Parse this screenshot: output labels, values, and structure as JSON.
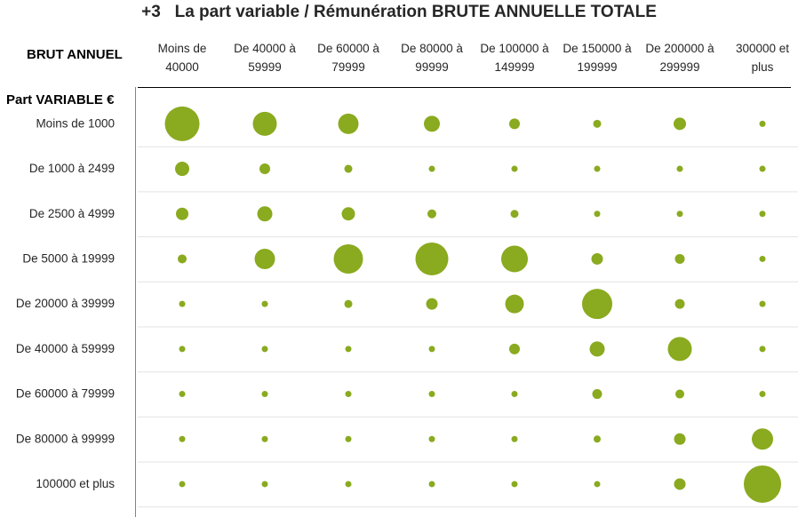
{
  "title": {
    "number": "+3",
    "part1": "La part variable / Rémunération",
    "part2": "BRUTE ANNUELLE TOTALE"
  },
  "corner_label": "BRUT ANNUEL",
  "row_header": "Part VARIABLE €",
  "colors": {
    "bubble": "#8aaa1f",
    "grid": "#e3e3e3",
    "axis": "#7f7f9f",
    "header_rule": "#000000"
  },
  "chart_data": {
    "type": "scatter",
    "subtype": "bubble-matrix",
    "title": "La part variable / Rémunération BRUTE ANNUELLE TOTALE",
    "x_categories": [
      [
        "Moins de",
        "40000"
      ],
      [
        "De 40000 à",
        "59999"
      ],
      [
        "De 60000 à",
        "79999"
      ],
      [
        "De 80000 à",
        "99999"
      ],
      [
        "De 100000 à",
        "149999"
      ],
      [
        "De 150000 à",
        "199999"
      ],
      [
        "De 200000 à",
        "299999"
      ],
      [
        "300000 et",
        "plus"
      ]
    ],
    "y_categories": [
      "Moins de 1000",
      "De 1000 à 2499",
      "De 2500 à 4999",
      "De 5000 à 19999",
      "De 20000 à 39999",
      "De 40000 à 59999",
      "De 60000 à 79999",
      "De 80000 à 99999",
      "100000 et plus"
    ],
    "sizes": [
      [
        19.5,
        13.5,
        11.5,
        9,
        6,
        4.5,
        7,
        3.5
      ],
      [
        8,
        6,
        4.5,
        3.5,
        3.5,
        3.5,
        3.5,
        3.5
      ],
      [
        7,
        8.5,
        7.5,
        5,
        4.5,
        3.5,
        3.5,
        3.5
      ],
      [
        5,
        11.5,
        16.5,
        18.5,
        15,
        6.5,
        5.5,
        3.5
      ],
      [
        3.5,
        3.5,
        4.5,
        6.5,
        10.5,
        17,
        5.5,
        3.5
      ],
      [
        3.5,
        3.5,
        3.5,
        3.5,
        6,
        8.5,
        13.5,
        3.5
      ],
      [
        3.5,
        3.5,
        3.5,
        3.5,
        3.5,
        5.5,
        5,
        3.5
      ],
      [
        3.5,
        3.5,
        3.5,
        3.5,
        3.5,
        4,
        6.5,
        12
      ],
      [
        3.5,
        3.5,
        3.5,
        3.5,
        3.5,
        3.5,
        6.5,
        21
      ]
    ]
  }
}
